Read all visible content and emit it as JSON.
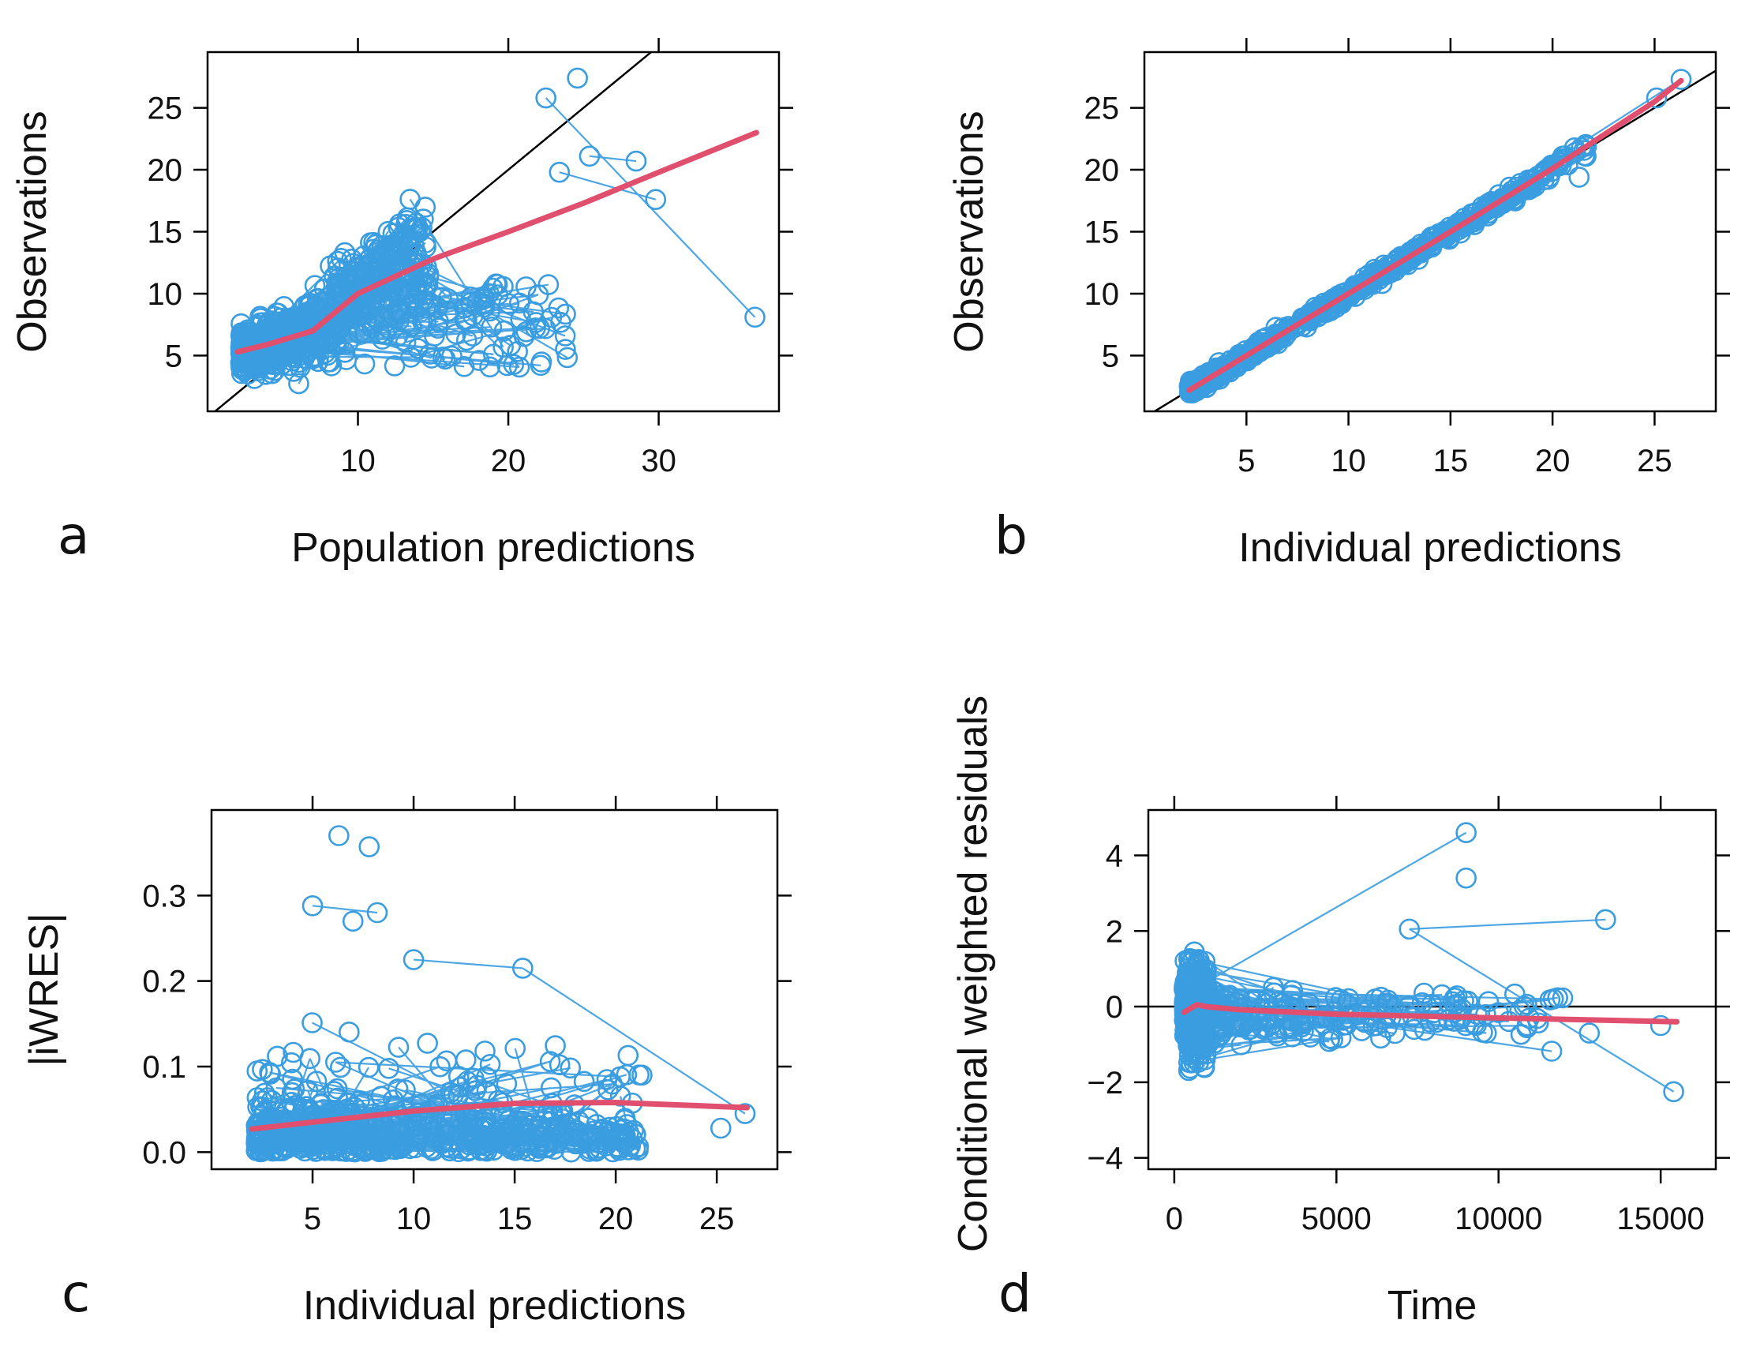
{
  "colors": {
    "points": "#3a9de0",
    "smooth": "#e0506e",
    "reference": "#000000",
    "frame": "#000000"
  },
  "chart_data": [
    {
      "id": "a",
      "type": "scatter",
      "letter": "a",
      "xlabel": "Population predictions",
      "ylabel": "Observations",
      "xlim": [
        0,
        38
      ],
      "ylim": [
        0.5,
        29.5
      ],
      "xticks": [
        10,
        20,
        30
      ],
      "yticks": [
        5,
        10,
        15,
        20,
        25
      ],
      "xtick_labels": [
        "10",
        "20",
        "30"
      ],
      "ytick_labels": [
        "5",
        "10",
        "15",
        "20",
        "25"
      ],
      "reference_line": "identity",
      "smooth": {
        "x": [
          2,
          4,
          7,
          10,
          15,
          20,
          25,
          30,
          36.5
        ],
        "y": [
          5.3,
          5.9,
          7.0,
          10.0,
          12.8,
          15.0,
          17.3,
          19.8,
          23.0
        ]
      },
      "points": {
        "n": 750,
        "seed": 11,
        "model": "pop_obs"
      },
      "outliers": {
        "x": [
          24.6,
          22.5,
          36.4,
          25.4,
          28.5,
          29.8,
          23.4,
          23.8
        ],
        "y": [
          27.4,
          25.8,
          8.1,
          21.1,
          20.7,
          17.6,
          19.8,
          5.5
        ]
      }
    },
    {
      "id": "b",
      "type": "scatter",
      "letter": "b",
      "xlabel": "Individual predictions",
      "ylabel": "Observations",
      "xlim": [
        0,
        28
      ],
      "ylim": [
        0.5,
        29.5
      ],
      "xticks": [
        5,
        10,
        15,
        20,
        25
      ],
      "yticks": [
        5,
        10,
        15,
        20,
        25
      ],
      "xtick_labels": [
        "5",
        "10",
        "15",
        "20",
        "25"
      ],
      "ytick_labels": [
        "5",
        "10",
        "15",
        "20",
        "25"
      ],
      "reference_line": "identity",
      "smooth": {
        "x": [
          2.2,
          5,
          10,
          15,
          20,
          25,
          26.3
        ],
        "y": [
          2.2,
          5.0,
          10.0,
          15.0,
          20.1,
          25.5,
          27.2
        ]
      },
      "points": {
        "n": 520,
        "seed": 23,
        "model": "ipred_obs"
      },
      "outliers": {
        "x": [
          26.3,
          25.1,
          21.3,
          20.5,
          17.9
        ],
        "y": [
          27.3,
          25.8,
          19.4,
          21.1,
          18.6
        ]
      }
    },
    {
      "id": "c",
      "type": "scatter",
      "letter": "c",
      "xlabel": "Individual predictions",
      "ylabel": "|iWRES|",
      "xlim": [
        0,
        28
      ],
      "ylim": [
        -0.02,
        0.4
      ],
      "xticks": [
        5,
        10,
        15,
        20,
        25
      ],
      "yticks": [
        0.0,
        0.1,
        0.2,
        0.3
      ],
      "xtick_labels": [
        "5",
        "10",
        "15",
        "20",
        "25"
      ],
      "ytick_labels": [
        "0.0",
        "0.1",
        "0.2",
        "0.3"
      ],
      "reference_line": "none",
      "smooth": {
        "x": [
          2,
          5,
          10,
          15,
          20,
          26.5
        ],
        "y": [
          0.027,
          0.035,
          0.048,
          0.057,
          0.058,
          0.052
        ]
      },
      "points": {
        "n": 620,
        "seed": 37,
        "model": "iwres"
      },
      "outliers": {
        "x": [
          6.3,
          7.8,
          5.0,
          8.2,
          7.0,
          10.0,
          15.4,
          26.4,
          25.2,
          21.3
        ],
        "y": [
          0.37,
          0.357,
          0.288,
          0.28,
          0.27,
          0.225,
          0.215,
          0.045,
          0.028,
          0.09
        ]
      }
    },
    {
      "id": "d",
      "type": "scatter",
      "letter": "d",
      "xlabel": "Time",
      "ylabel": "Conditional weighted residuals",
      "xlim": [
        -800,
        16700
      ],
      "ylim": [
        -4.3,
        5.2
      ],
      "xticks": [
        0,
        5000,
        10000,
        15000
      ],
      "yticks": [
        -4,
        -2,
        0,
        2,
        4
      ],
      "xtick_labels": [
        "0",
        "5000",
        "10000",
        "15000"
      ],
      "ytick_labels": [
        "−4",
        "−2",
        "0",
        "2",
        "4"
      ],
      "reference_line": "zero",
      "smooth": {
        "x": [
          300,
          500,
          700,
          1000,
          2000,
          5000,
          10000,
          15500
        ],
        "y": [
          -0.15,
          -0.05,
          0.05,
          0.0,
          -0.08,
          -0.2,
          -0.3,
          -0.4
        ]
      },
      "points": {
        "n": 520,
        "seed": 53,
        "model": "cwres_time"
      },
      "outliers": {
        "x": [
          9000,
          9000,
          13300,
          7250,
          15400,
          15000,
          12800
        ],
        "y": [
          4.6,
          3.4,
          2.3,
          2.05,
          -2.25,
          -0.5,
          -0.7
        ]
      }
    }
  ]
}
